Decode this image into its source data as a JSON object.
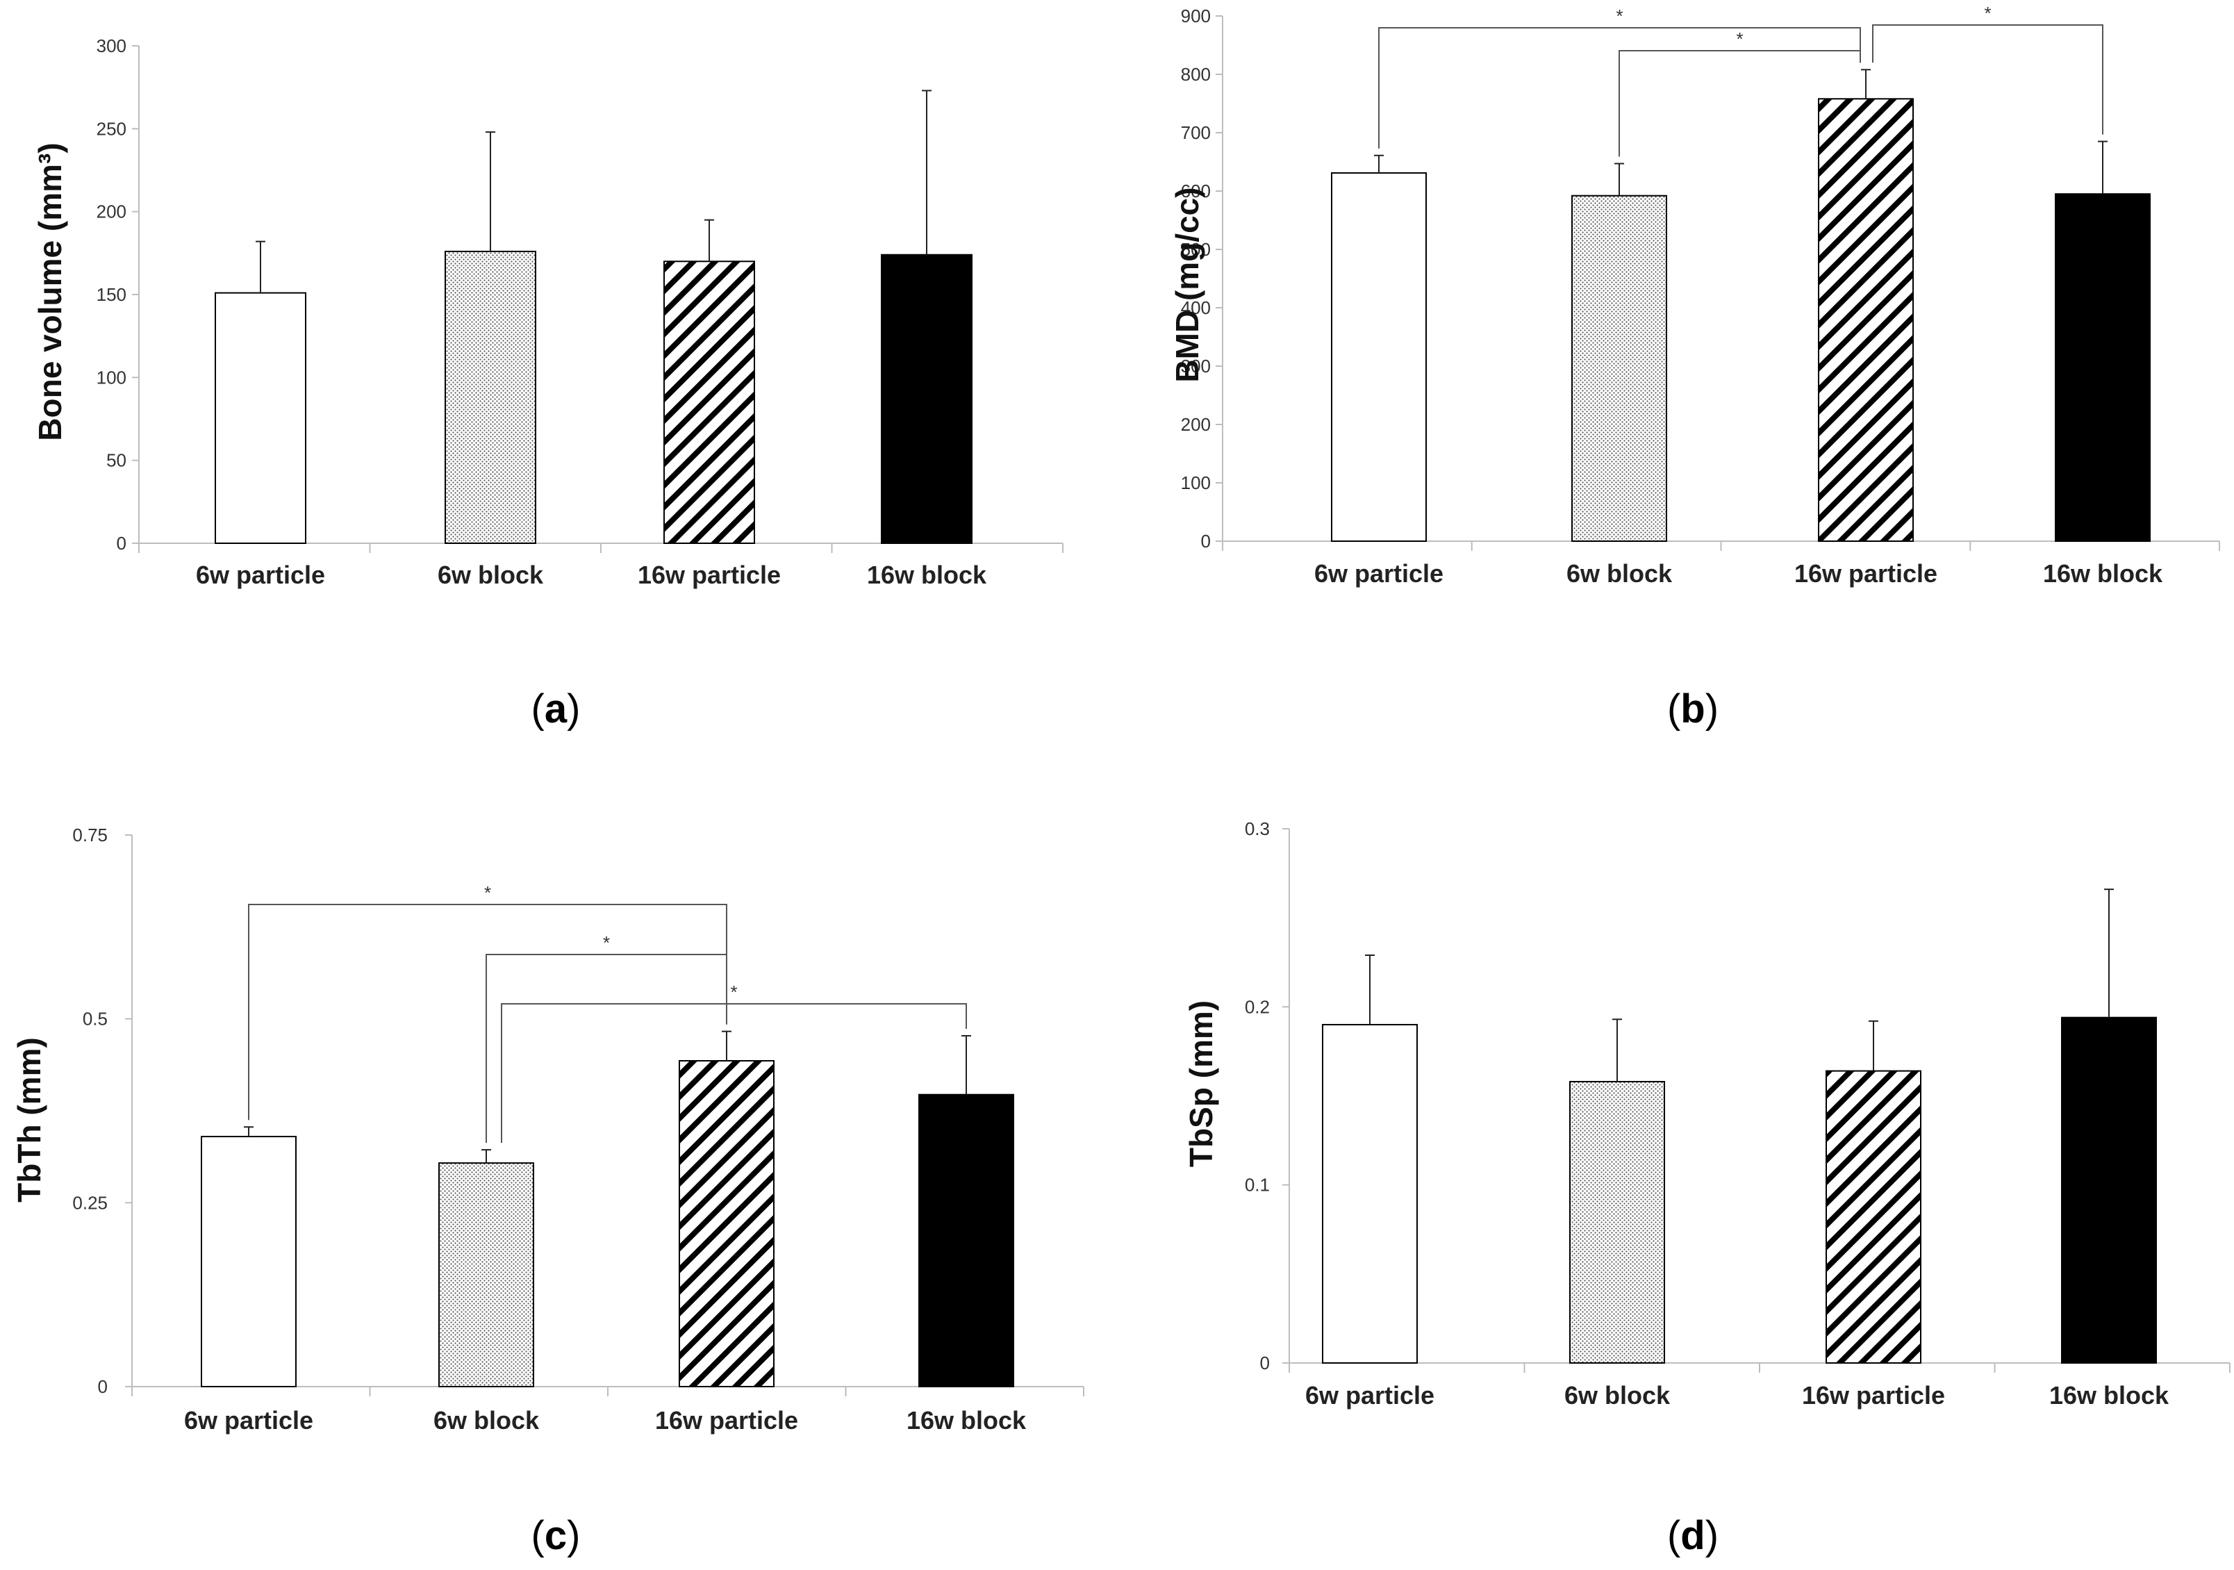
{
  "figure": {
    "colors": {
      "axis": "#bdbdbd",
      "bar_edge": "#000000",
      "white": "#ffffff",
      "dots": "#555555",
      "hatch": "#000000",
      "black": "#000000"
    }
  },
  "chart_data": [
    {
      "type": "bar",
      "panel_label": "a",
      "title": "",
      "xlabel": "",
      "ylabel": "Bone volume (mm³)",
      "categories": [
        "6w particle",
        "6w block",
        "16w particle",
        "16w block"
      ],
      "values": [
        151,
        176,
        170,
        174
      ],
      "errors": [
        31,
        72,
        25,
        99
      ],
      "ylim": [
        0,
        300
      ],
      "yticks": [
        0,
        50,
        100,
        150,
        200,
        250,
        300
      ],
      "ytick_labels": [
        "0",
        "50",
        "100",
        "150",
        "200",
        "250",
        "300"
      ],
      "patterns": [
        "white",
        "dots",
        "hatch",
        "black"
      ],
      "significance": []
    },
    {
      "type": "bar",
      "panel_label": "b",
      "title": "",
      "xlabel": "",
      "ylabel": "BMD (mg/cc)",
      "categories": [
        "6w particle",
        "6w block",
        "16w particle",
        "16w block"
      ],
      "values": [
        631,
        592,
        758,
        595
      ],
      "errors": [
        30,
        55,
        50,
        90
      ],
      "ylim": [
        0,
        900
      ],
      "yticks": [
        0,
        100,
        200,
        300,
        400,
        500,
        600,
        700,
        800,
        900
      ],
      "ytick_labels": [
        "0",
        "100",
        "200",
        "300",
        "400",
        "500",
        "600",
        "700",
        "800",
        "900"
      ],
      "patterns": [
        "white",
        "dots",
        "hatch",
        "black"
      ],
      "significance": [
        {
          "from": 0,
          "to": 2,
          "label": "*"
        },
        {
          "from": 1,
          "to": 2,
          "label": "*"
        },
        {
          "from": 2,
          "to": 3,
          "label": "*"
        }
      ]
    },
    {
      "type": "bar",
      "panel_label": "c",
      "title": "",
      "xlabel": "",
      "ylabel": "TbTh (mm)",
      "categories": [
        "6w particle",
        "6w block",
        "16w particle",
        "16w block"
      ],
      "values": [
        0.34,
        0.304,
        0.443,
        0.397
      ],
      "errors": [
        0.013,
        0.018,
        0.04,
        0.08
      ],
      "ylim": [
        0,
        0.75
      ],
      "yticks": [
        0,
        0.25,
        0.5,
        0.75
      ],
      "ytick_labels": [
        "0",
        "0.25",
        "0.5",
        "0.75"
      ],
      "patterns": [
        "white",
        "dots",
        "hatch",
        "black"
      ],
      "significance": [
        {
          "from": 0,
          "to": 2,
          "label": "*"
        },
        {
          "from": 1,
          "to": 2,
          "label": "*"
        },
        {
          "from": 1,
          "to": 3,
          "label": "*"
        }
      ]
    },
    {
      "type": "bar",
      "panel_label": "d",
      "title": "",
      "xlabel": "",
      "ylabel": "TbSp (mm)",
      "categories": [
        "6w particle",
        "6w block",
        "16w particle",
        "16w block"
      ],
      "values": [
        0.19,
        0.158,
        0.164,
        0.194
      ],
      "errors": [
        0.039,
        0.035,
        0.028,
        0.072
      ],
      "ylim": [
        0,
        0.3
      ],
      "yticks": [
        0,
        0.1,
        0.2,
        0.3
      ],
      "ytick_labels": [
        "0",
        "0.1",
        "0.2",
        "0.3"
      ],
      "patterns": [
        "white",
        "dots",
        "hatch",
        "black"
      ],
      "significance": []
    }
  ]
}
